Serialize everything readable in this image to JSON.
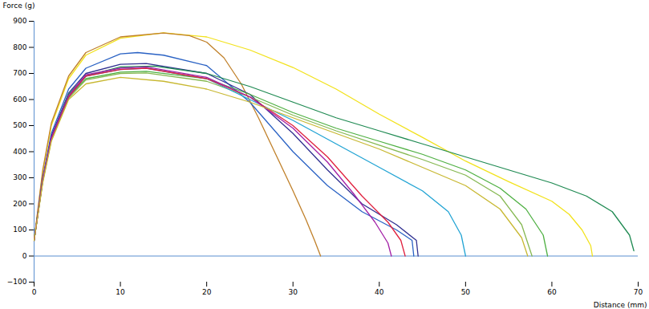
{
  "chart_data": {
    "type": "line",
    "y_label": "Force (g)",
    "x_label": "Distance (mm)",
    "xlim": [
      0,
      70
    ],
    "xticks": [
      0,
      10,
      20,
      30,
      40,
      50,
      60,
      70
    ],
    "ylim": [
      -100,
      900
    ],
    "yticks": [
      -100,
      0,
      100,
      200,
      300,
      400,
      500,
      600,
      700,
      800,
      900
    ],
    "grid": false,
    "series": [
      {
        "color": "#f2e21c",
        "x": [
          0,
          1,
          2,
          4,
          6,
          10,
          15,
          20,
          25,
          30,
          35,
          40,
          45,
          50,
          55,
          60,
          62,
          63.5,
          64.5,
          64.7
        ],
        "values": [
          60,
          320,
          500,
          680,
          770,
          835,
          856,
          840,
          790,
          723,
          640,
          544,
          455,
          364,
          285,
          210,
          160,
          100,
          40,
          0
        ]
      },
      {
        "color": "#c0802a",
        "x": [
          0,
          1,
          2,
          4,
          6,
          10,
          15,
          18,
          20,
          22,
          24,
          26,
          28,
          30,
          31.5,
          32.5,
          33.2
        ],
        "values": [
          60,
          330,
          510,
          690,
          780,
          840,
          855,
          845,
          820,
          760,
          660,
          530,
          390,
          250,
          140,
          60,
          0
        ]
      },
      {
        "color": "#2a62c4",
        "x": [
          0,
          1,
          2,
          4,
          6,
          10,
          12,
          15,
          20,
          25,
          30,
          34,
          38,
          42,
          43.8,
          44
        ],
        "values": [
          60,
          300,
          470,
          640,
          720,
          775,
          780,
          770,
          730,
          590,
          400,
          270,
          170,
          100,
          60,
          0
        ]
      },
      {
        "color": "#303090",
        "x": [
          0,
          1,
          2,
          4,
          6,
          10,
          13,
          20,
          25,
          30,
          34,
          38,
          42,
          44.3,
          44.5
        ],
        "values": [
          60,
          295,
          460,
          625,
          700,
          735,
          738,
          700,
          620,
          470,
          330,
          200,
          120,
          60,
          0
        ]
      },
      {
        "color": "#1f8a52",
        "x": [
          0,
          1,
          2,
          4,
          6,
          10,
          14,
          20,
          25,
          30,
          35,
          40,
          45,
          50,
          55,
          60,
          64,
          67,
          69,
          69.5
        ],
        "values": [
          60,
          290,
          450,
          620,
          690,
          725,
          728,
          700,
          650,
          590,
          530,
          480,
          430,
          380,
          330,
          280,
          230,
          170,
          80,
          20
        ]
      },
      {
        "color": "#4fb043",
        "x": [
          0,
          1,
          2,
          4,
          6,
          10,
          13,
          20,
          25,
          30,
          35,
          40,
          45,
          50,
          54,
          57,
          59,
          59.5
        ],
        "values": [
          60,
          290,
          450,
          610,
          680,
          705,
          708,
          680,
          620,
          550,
          490,
          440,
          390,
          330,
          260,
          180,
          80,
          0
        ]
      },
      {
        "color": "#86b852",
        "x": [
          0,
          1,
          2,
          4,
          6,
          10,
          13,
          20,
          25,
          30,
          35,
          40,
          45,
          50,
          54,
          56.5,
          57.7
        ],
        "values": [
          60,
          285,
          445,
          605,
          675,
          700,
          702,
          670,
          610,
          540,
          480,
          425,
          370,
          310,
          230,
          120,
          0
        ]
      },
      {
        "color": "#22a4d4",
        "x": [
          0,
          1,
          2,
          4,
          6,
          10,
          13,
          20,
          25,
          30,
          35,
          40,
          45,
          48,
          49.5,
          50
        ],
        "values": [
          60,
          290,
          450,
          610,
          690,
          715,
          720,
          680,
          600,
          520,
          430,
          340,
          250,
          170,
          80,
          0
        ]
      },
      {
        "color": "#e0203e",
        "x": [
          0,
          1,
          2,
          4,
          6,
          10,
          13,
          20,
          25,
          30,
          34,
          38,
          41,
          42.5,
          43
        ],
        "values": [
          60,
          290,
          450,
          610,
          690,
          715,
          720,
          680,
          610,
          500,
          380,
          230,
          130,
          60,
          0
        ]
      },
      {
        "color": "#a21fa6",
        "x": [
          0,
          1,
          2,
          4,
          6,
          10,
          13,
          20,
          25,
          30,
          34,
          37,
          39.5,
          41,
          41.4
        ],
        "values": [
          60,
          290,
          455,
          615,
          695,
          720,
          725,
          685,
          610,
          490,
          360,
          240,
          130,
          50,
          0
        ]
      },
      {
        "color": "#c8b832",
        "x": [
          0,
          1,
          2,
          4,
          6,
          10,
          15,
          20,
          25,
          30,
          35,
          40,
          45,
          50,
          54,
          56.5,
          57.2
        ],
        "values": [
          60,
          280,
          440,
          600,
          660,
          685,
          670,
          640,
          590,
          530,
          470,
          410,
          340,
          270,
          180,
          70,
          0
        ]
      }
    ]
  }
}
